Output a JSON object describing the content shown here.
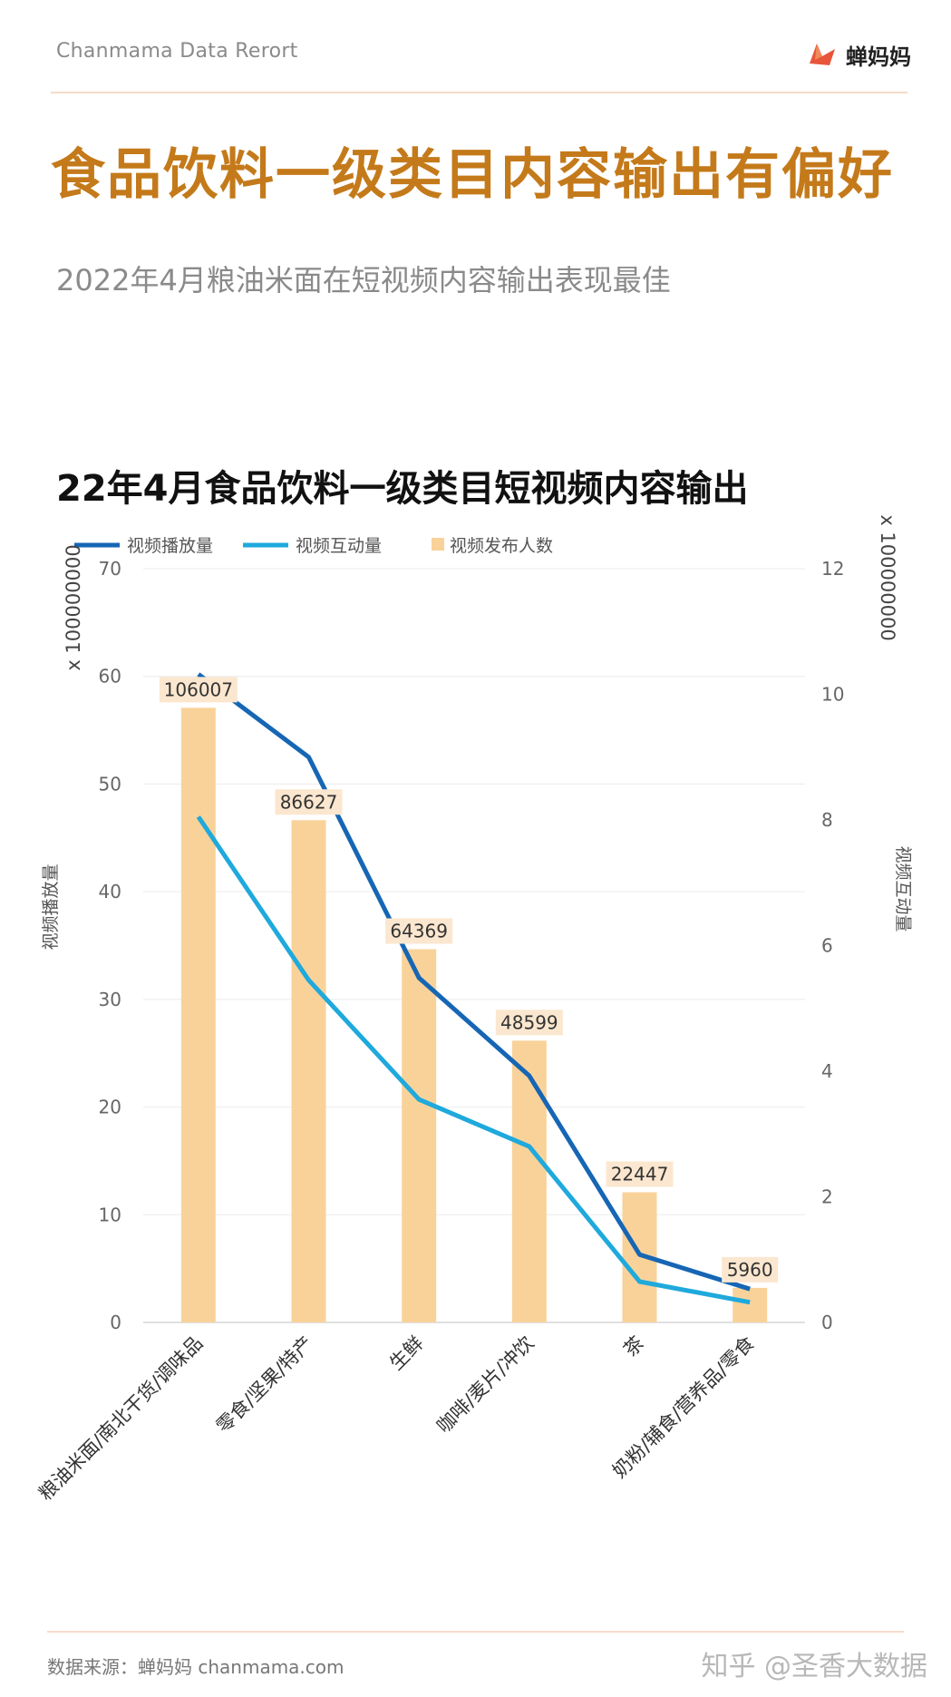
{
  "header": {
    "brand": "Chanmama Data Rerort",
    "logo_text": "蝉妈妈"
  },
  "title": "食品饮料一级类目内容输出有偏好",
  "subtitle": "2022年4月粮油米面在短视频内容输出表现最佳",
  "footer": {
    "source": "数据来源：蝉妈妈 chanmama.com",
    "watermark": "知乎 @圣香大数据"
  },
  "colors": {
    "brand_orange": "#c47a1a",
    "plays_line": "#1666b4",
    "interactions_line": "#1fa9dc",
    "bars": "#f9d29a",
    "label_bg": "#fbe7cf"
  },
  "chart_data": {
    "type": "bar",
    "title": "22年4月食品饮料一级类目短视频内容输出",
    "categories": [
      "粮油米面/南北干货/调味品",
      "零食/坚果/特产",
      "生鲜",
      "咖啡/麦片/冲饮",
      "茶",
      "奶粉/辅食/营养品/零食"
    ],
    "series": [
      {
        "name": "视频播放量",
        "type": "line",
        "axis": "left",
        "values": [
          60.2,
          52.5,
          32.0,
          22.9,
          6.3,
          3.1
        ]
      },
      {
        "name": "视频互动量",
        "type": "line",
        "axis": "right",
        "values": [
          8.05,
          5.45,
          3.55,
          2.8,
          0.65,
          0.32
        ]
      },
      {
        "name": "视频发布人数",
        "type": "bar",
        "axis": "left",
        "values": [
          106007,
          86627,
          64369,
          48599,
          22447,
          5960
        ],
        "value_labels": [
          "106007",
          "86627",
          "64369",
          "48599",
          "22447",
          "5960"
        ]
      }
    ],
    "ylabel": "视频播放量",
    "ylabel_unit": "x 100000000",
    "ylim": [
      0,
      70
    ],
    "yticks": [
      "0",
      "10",
      "20",
      "30",
      "40",
      "50",
      "60",
      "70"
    ],
    "y2label": "视频互动量",
    "y2label_unit": "x 100000000",
    "y2lim": [
      0,
      12
    ],
    "y2ticks": [
      "0",
      "2",
      "4",
      "6",
      "8",
      "10",
      "12"
    ],
    "grid": true,
    "legend_position": "top-left"
  }
}
